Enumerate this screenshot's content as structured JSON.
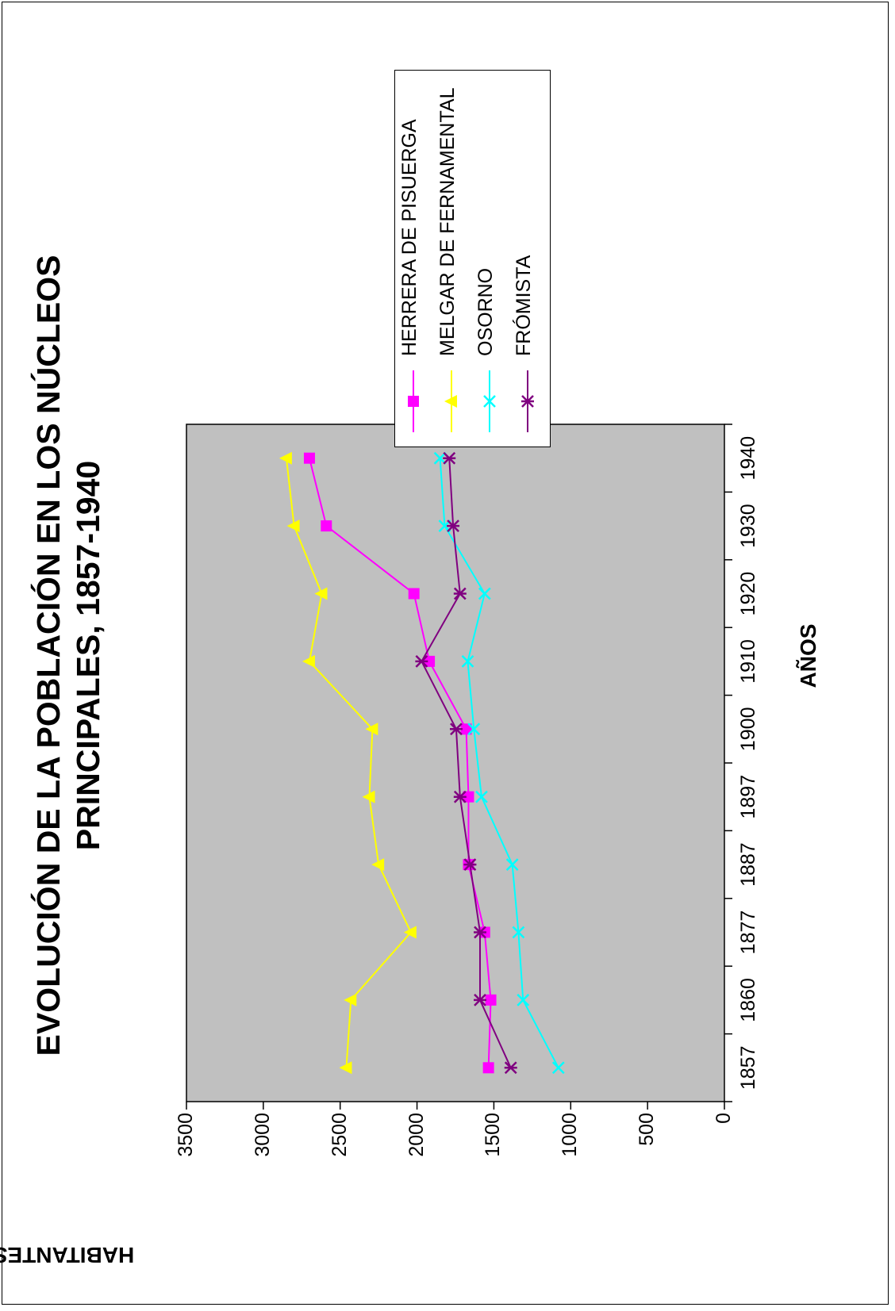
{
  "chart_data": {
    "type": "line",
    "title_line1": "EVOLUCIÓN DE LA POBLACIÓN EN LOS NÚCLEOS",
    "title_line2": "PRINCIPALES, 1857-1940",
    "xlabel": "AÑOS",
    "ylabel": "HABITANTES",
    "categories": [
      "1857",
      "1860",
      "1877",
      "1887",
      "1897",
      "1900",
      "1910",
      "1920",
      "1930",
      "1940"
    ],
    "ylim": [
      0,
      3500
    ],
    "yticks": [
      "0",
      "500",
      "1000",
      "1500",
      "2000",
      "2500",
      "3000",
      "3500"
    ],
    "plot_background": "#C0C0C0",
    "legend_position": "top-right",
    "series": [
      {
        "name": "HERRERA DE PISUERGA",
        "color": "#FF00FF",
        "marker": "square",
        "values": [
          1535,
          1520,
          1560,
          1665,
          1665,
          1680,
          1920,
          2020,
          2590,
          2700
        ]
      },
      {
        "name": "MELGAR DE FERNAMENTAL",
        "color": "#FFFF00",
        "marker": "triangle",
        "values": [
          2460,
          2430,
          2040,
          2250,
          2310,
          2290,
          2700,
          2620,
          2800,
          2850
        ]
      },
      {
        "name": "OSORNO",
        "color": "#00FFFF",
        "marker": "x",
        "values": [
          1080,
          1310,
          1340,
          1380,
          1580,
          1630,
          1670,
          1560,
          1820,
          1850
        ]
      },
      {
        "name": "FRÓMISTA",
        "color": "#800080",
        "marker": "star",
        "values": [
          1390,
          1590,
          1590,
          1655,
          1720,
          1745,
          1970,
          1720,
          1765,
          1790
        ]
      }
    ]
  }
}
